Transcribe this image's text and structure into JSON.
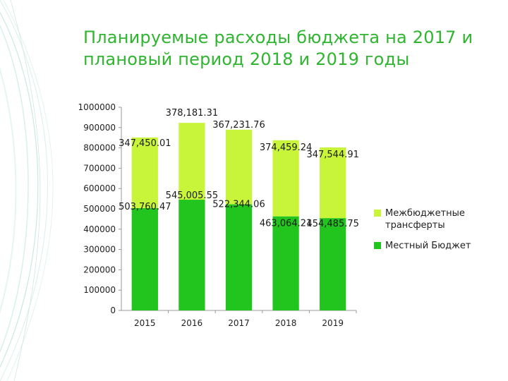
{
  "slide": {
    "title": "Планируемые расходы бюджета на 2017 и плановый период 2018 и 2019 годы"
  },
  "chart_data": {
    "type": "bar",
    "stacked": true,
    "categories": [
      "2015",
      "2016",
      "2017",
      "2018",
      "2019"
    ],
    "series": [
      {
        "name": "Местный Бюджет",
        "values": [
          503760.47,
          545005.55,
          522344.06,
          463064.21,
          454485.75
        ],
        "labels": [
          "503,760.47",
          "545,005.55",
          "522,344.06",
          "463,064.21",
          "454,485.75"
        ],
        "color": "#22c41e"
      },
      {
        "name": "Межбюджетные трансферты",
        "values": [
          347450.01,
          378181.31,
          367231.76,
          374459.24,
          347544.91
        ],
        "labels": [
          "347,450.01",
          "378,181.31",
          "367,231.76",
          "374,459.24",
          "347,544.91"
        ],
        "color": "#c8f53a"
      }
    ],
    "yticks": [
      "0",
      "100000",
      "200000",
      "300000",
      "400000",
      "500000",
      "600000",
      "700000",
      "800000",
      "900000",
      "1000000"
    ],
    "ylim": [
      0,
      1000000
    ],
    "legend_position": "right",
    "grid": false
  },
  "legend": {
    "items": [
      {
        "label": "Межбюджетные трансферты",
        "color": "#c8f53a"
      },
      {
        "label": "Местный Бюджет",
        "color": "#22c41e"
      }
    ]
  }
}
